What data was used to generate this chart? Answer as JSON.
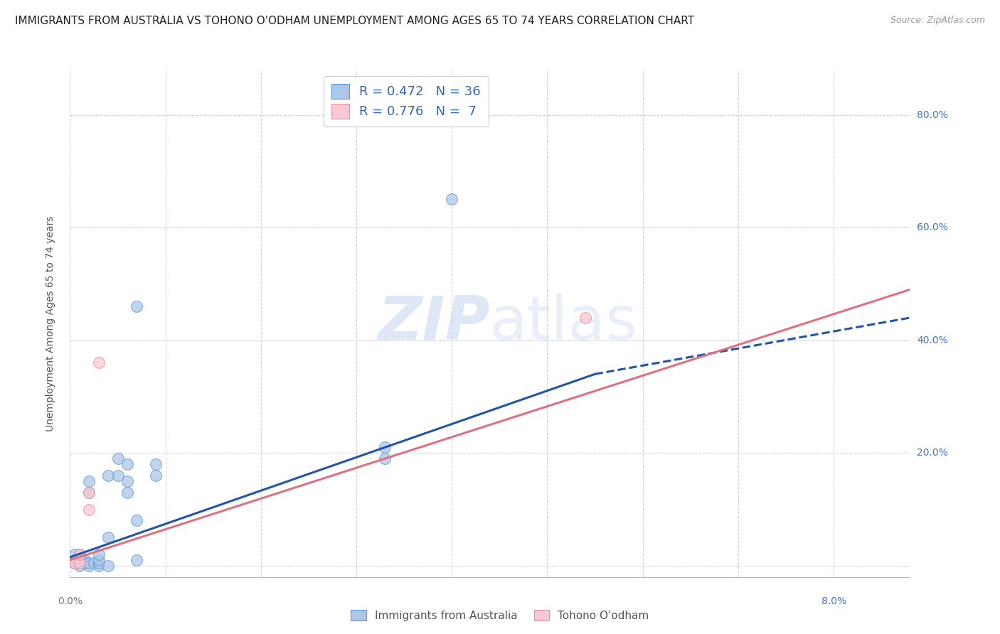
{
  "title": "IMMIGRANTS FROM AUSTRALIA VS TOHONO O'ODHAM UNEMPLOYMENT AMONG AGES 65 TO 74 YEARS CORRELATION CHART",
  "source": "Source: ZipAtlas.com",
  "ylabel": "Unemployment Among Ages 65 to 74 years",
  "xlim": [
    0.0,
    0.088
  ],
  "ylim": [
    -0.02,
    0.88
  ],
  "yticks": [
    0.0,
    0.2,
    0.4,
    0.6,
    0.8
  ],
  "ytick_labels": [
    "",
    "20.0%",
    "40.0%",
    "60.0%",
    "80.0%"
  ],
  "legend_entries": [
    {
      "label": "R = 0.472   N = 36",
      "facecolor": "#aec6e8",
      "edgecolor": "#5b9bd5"
    },
    {
      "label": "R = 0.776   N =  7",
      "facecolor": "#f9c8d4",
      "edgecolor": "#e8909a"
    }
  ],
  "blue_scatter": [
    [
      0.0005,
      0.005
    ],
    [
      0.0005,
      0.01
    ],
    [
      0.0005,
      0.02
    ],
    [
      0.0005,
      0.005
    ],
    [
      0.001,
      0.0
    ],
    [
      0.001,
      0.005
    ],
    [
      0.001,
      0.01
    ],
    [
      0.001,
      0.02
    ],
    [
      0.0015,
      0.005
    ],
    [
      0.0015,
      0.01
    ],
    [
      0.0015,
      0.005
    ],
    [
      0.002,
      0.0
    ],
    [
      0.002,
      0.005
    ],
    [
      0.002,
      0.13
    ],
    [
      0.002,
      0.15
    ],
    [
      0.0025,
      0.005
    ],
    [
      0.003,
      0.0
    ],
    [
      0.003,
      0.005
    ],
    [
      0.003,
      0.01
    ],
    [
      0.003,
      0.02
    ],
    [
      0.004,
      0.0
    ],
    [
      0.004,
      0.05
    ],
    [
      0.004,
      0.16
    ],
    [
      0.005,
      0.16
    ],
    [
      0.005,
      0.19
    ],
    [
      0.006,
      0.13
    ],
    [
      0.006,
      0.15
    ],
    [
      0.006,
      0.18
    ],
    [
      0.007,
      0.01
    ],
    [
      0.007,
      0.08
    ],
    [
      0.007,
      0.46
    ],
    [
      0.009,
      0.16
    ],
    [
      0.009,
      0.18
    ],
    [
      0.033,
      0.19
    ],
    [
      0.033,
      0.21
    ],
    [
      0.04,
      0.65
    ]
  ],
  "pink_scatter": [
    [
      0.0005,
      0.005
    ],
    [
      0.001,
      0.005
    ],
    [
      0.001,
      0.02
    ],
    [
      0.002,
      0.1
    ],
    [
      0.002,
      0.13
    ],
    [
      0.003,
      0.36
    ],
    [
      0.054,
      0.44
    ]
  ],
  "blue_line_solid": {
    "x0": 0.0,
    "y0": 0.015,
    "x1": 0.055,
    "y1": 0.34
  },
  "blue_line_dashed": {
    "x0": 0.055,
    "y0": 0.34,
    "x1": 0.088,
    "y1": 0.44
  },
  "pink_line": {
    "x0": 0.0,
    "y0": 0.01,
    "x1": 0.088,
    "y1": 0.49
  },
  "blue_line_color": "#2255aa",
  "pink_line_color": "#e07080",
  "background_color": "#ffffff",
  "grid_color": "#cccccc",
  "title_fontsize": 11,
  "axis_label_fontsize": 10,
  "tick_fontsize": 10,
  "source_fontsize": 9,
  "watermark_zip_color": "#c8d8f0",
  "watermark_atlas_color": "#c8d8f0"
}
